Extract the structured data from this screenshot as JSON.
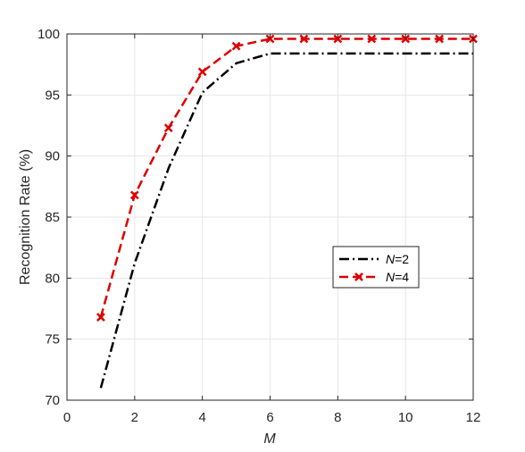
{
  "chart_data": {
    "type": "line",
    "xlabel": "M",
    "ylabel": "Recognition Rate (%)",
    "xlim": [
      0,
      12
    ],
    "ylim": [
      70,
      100
    ],
    "xticks": [
      0,
      2,
      4,
      6,
      8,
      10,
      12
    ],
    "yticks": [
      70,
      75,
      80,
      85,
      90,
      95,
      100
    ],
    "grid": true,
    "legend_position": "center-right",
    "series": [
      {
        "name_prefix": "N",
        "name_suffix": "=2",
        "color": "#000000",
        "line_style": "dash-dot",
        "marker": "none",
        "x": [
          1,
          2,
          3,
          4,
          5,
          6,
          7,
          8,
          9,
          10,
          11,
          12
        ],
        "values": [
          71.0,
          81.2,
          89.0,
          95.2,
          97.6,
          98.4,
          98.4,
          98.4,
          98.4,
          98.4,
          98.4,
          98.4
        ]
      },
      {
        "name_prefix": "N",
        "name_suffix": "=4",
        "color": "#dd0000",
        "line_style": "dashed",
        "marker": "x",
        "x": [
          1,
          2,
          3,
          4,
          5,
          6,
          7,
          8,
          9,
          10,
          11,
          12
        ],
        "values": [
          76.8,
          86.8,
          92.3,
          96.9,
          99.0,
          99.6,
          99.6,
          99.6,
          99.6,
          99.6,
          99.6,
          99.6
        ]
      }
    ]
  }
}
